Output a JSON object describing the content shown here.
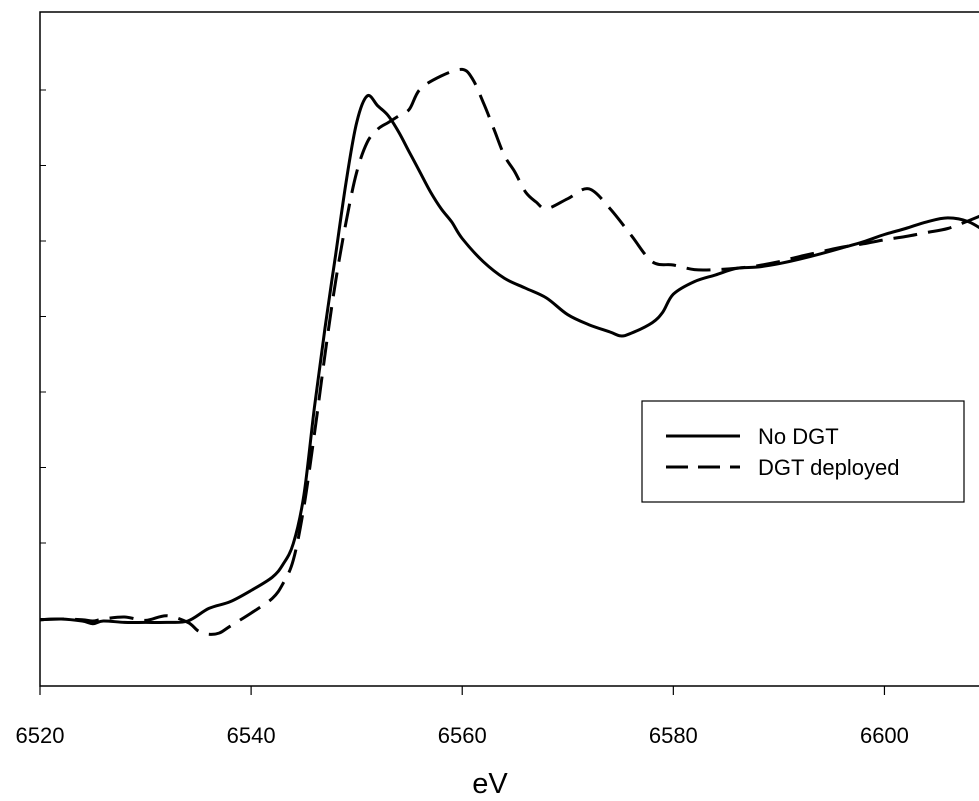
{
  "chart_data": {
    "type": "line",
    "title": "",
    "xlabel": "eV",
    "ylabel": "",
    "xlim": [
      6520,
      6610
    ],
    "ylim": [
      0,
      1.0
    ],
    "x_ticks": [
      6520,
      6540,
      6560,
      6580,
      6600
    ],
    "x_tick_labels": [
      "6520",
      "6540",
      "6560",
      "6580",
      "6600"
    ],
    "y_tick_count": 8,
    "y_tick_labels_shown": false,
    "grid": false,
    "legend_placement": "right",
    "series": [
      {
        "name": "No DGT",
        "style": "solid",
        "x": [
          6520,
          6522,
          6524,
          6525,
          6526,
          6528,
          6530,
          6532,
          6534,
          6536,
          6538,
          6540,
          6542,
          6543,
          6544,
          6545,
          6546,
          6547,
          6548,
          6549,
          6550,
          6551,
          6552,
          6553,
          6554,
          6555,
          6556,
          6557,
          6558,
          6559,
          6560,
          6562,
          6564,
          6566,
          6568,
          6570,
          6572,
          6574,
          6575,
          6576,
          6578,
          6579,
          6580,
          6582,
          6584,
          6586,
          6588,
          6590,
          6592,
          6594,
          6596,
          6598,
          6600,
          6602,
          6604,
          6606,
          6608,
          6610
        ],
        "y": [
          0.1,
          0.101,
          0.098,
          0.094,
          0.098,
          0.096,
          0.096,
          0.096,
          0.098,
          0.117,
          0.127,
          0.144,
          0.164,
          0.183,
          0.215,
          0.288,
          0.42,
          0.54,
          0.65,
          0.76,
          0.85,
          0.89,
          0.875,
          0.86,
          0.835,
          0.805,
          0.775,
          0.745,
          0.72,
          0.7,
          0.675,
          0.64,
          0.615,
          0.6,
          0.585,
          0.56,
          0.545,
          0.534,
          0.528,
          0.532,
          0.548,
          0.564,
          0.591,
          0.61,
          0.62,
          0.63,
          0.632,
          0.637,
          0.644,
          0.652,
          0.661,
          0.67,
          0.681,
          0.69,
          0.7,
          0.706,
          0.7,
          0.681
        ]
      },
      {
        "name": "DGT deployed",
        "style": "dashed",
        "x": [
          6520,
          6522,
          6524,
          6525,
          6526,
          6528,
          6530,
          6532,
          6534,
          6535,
          6536,
          6537,
          6538,
          6540,
          6542,
          6543,
          6544,
          6545,
          6546,
          6547,
          6548,
          6549,
          6550,
          6551,
          6552,
          6553,
          6554,
          6555,
          6556,
          6558,
          6560,
          6561,
          6562,
          6563,
          6564,
          6565,
          6566,
          6567,
          6568,
          6570,
          6572,
          6574,
          6576,
          6578,
          6580,
          6582,
          6584,
          6586,
          6588,
          6590,
          6592,
          6594,
          6596,
          6598,
          6600,
          6602,
          6604,
          6606,
          6608,
          6610
        ],
        "y": [
          0.1,
          0.101,
          0.1,
          0.098,
          0.101,
          0.104,
          0.099,
          0.106,
          0.096,
          0.083,
          0.078,
          0.08,
          0.09,
          0.11,
          0.132,
          0.154,
          0.19,
          0.27,
          0.38,
          0.5,
          0.61,
          0.7,
          0.775,
          0.82,
          0.84,
          0.85,
          0.86,
          0.87,
          0.9,
          0.92,
          0.93,
          0.915,
          0.88,
          0.84,
          0.8,
          0.775,
          0.745,
          0.73,
          0.72,
          0.735,
          0.75,
          0.72,
          0.68,
          0.64,
          0.635,
          0.628,
          0.628,
          0.63,
          0.634,
          0.64,
          0.648,
          0.655,
          0.662,
          0.667,
          0.673,
          0.678,
          0.684,
          0.69,
          0.702,
          0.715
        ]
      }
    ]
  }
}
